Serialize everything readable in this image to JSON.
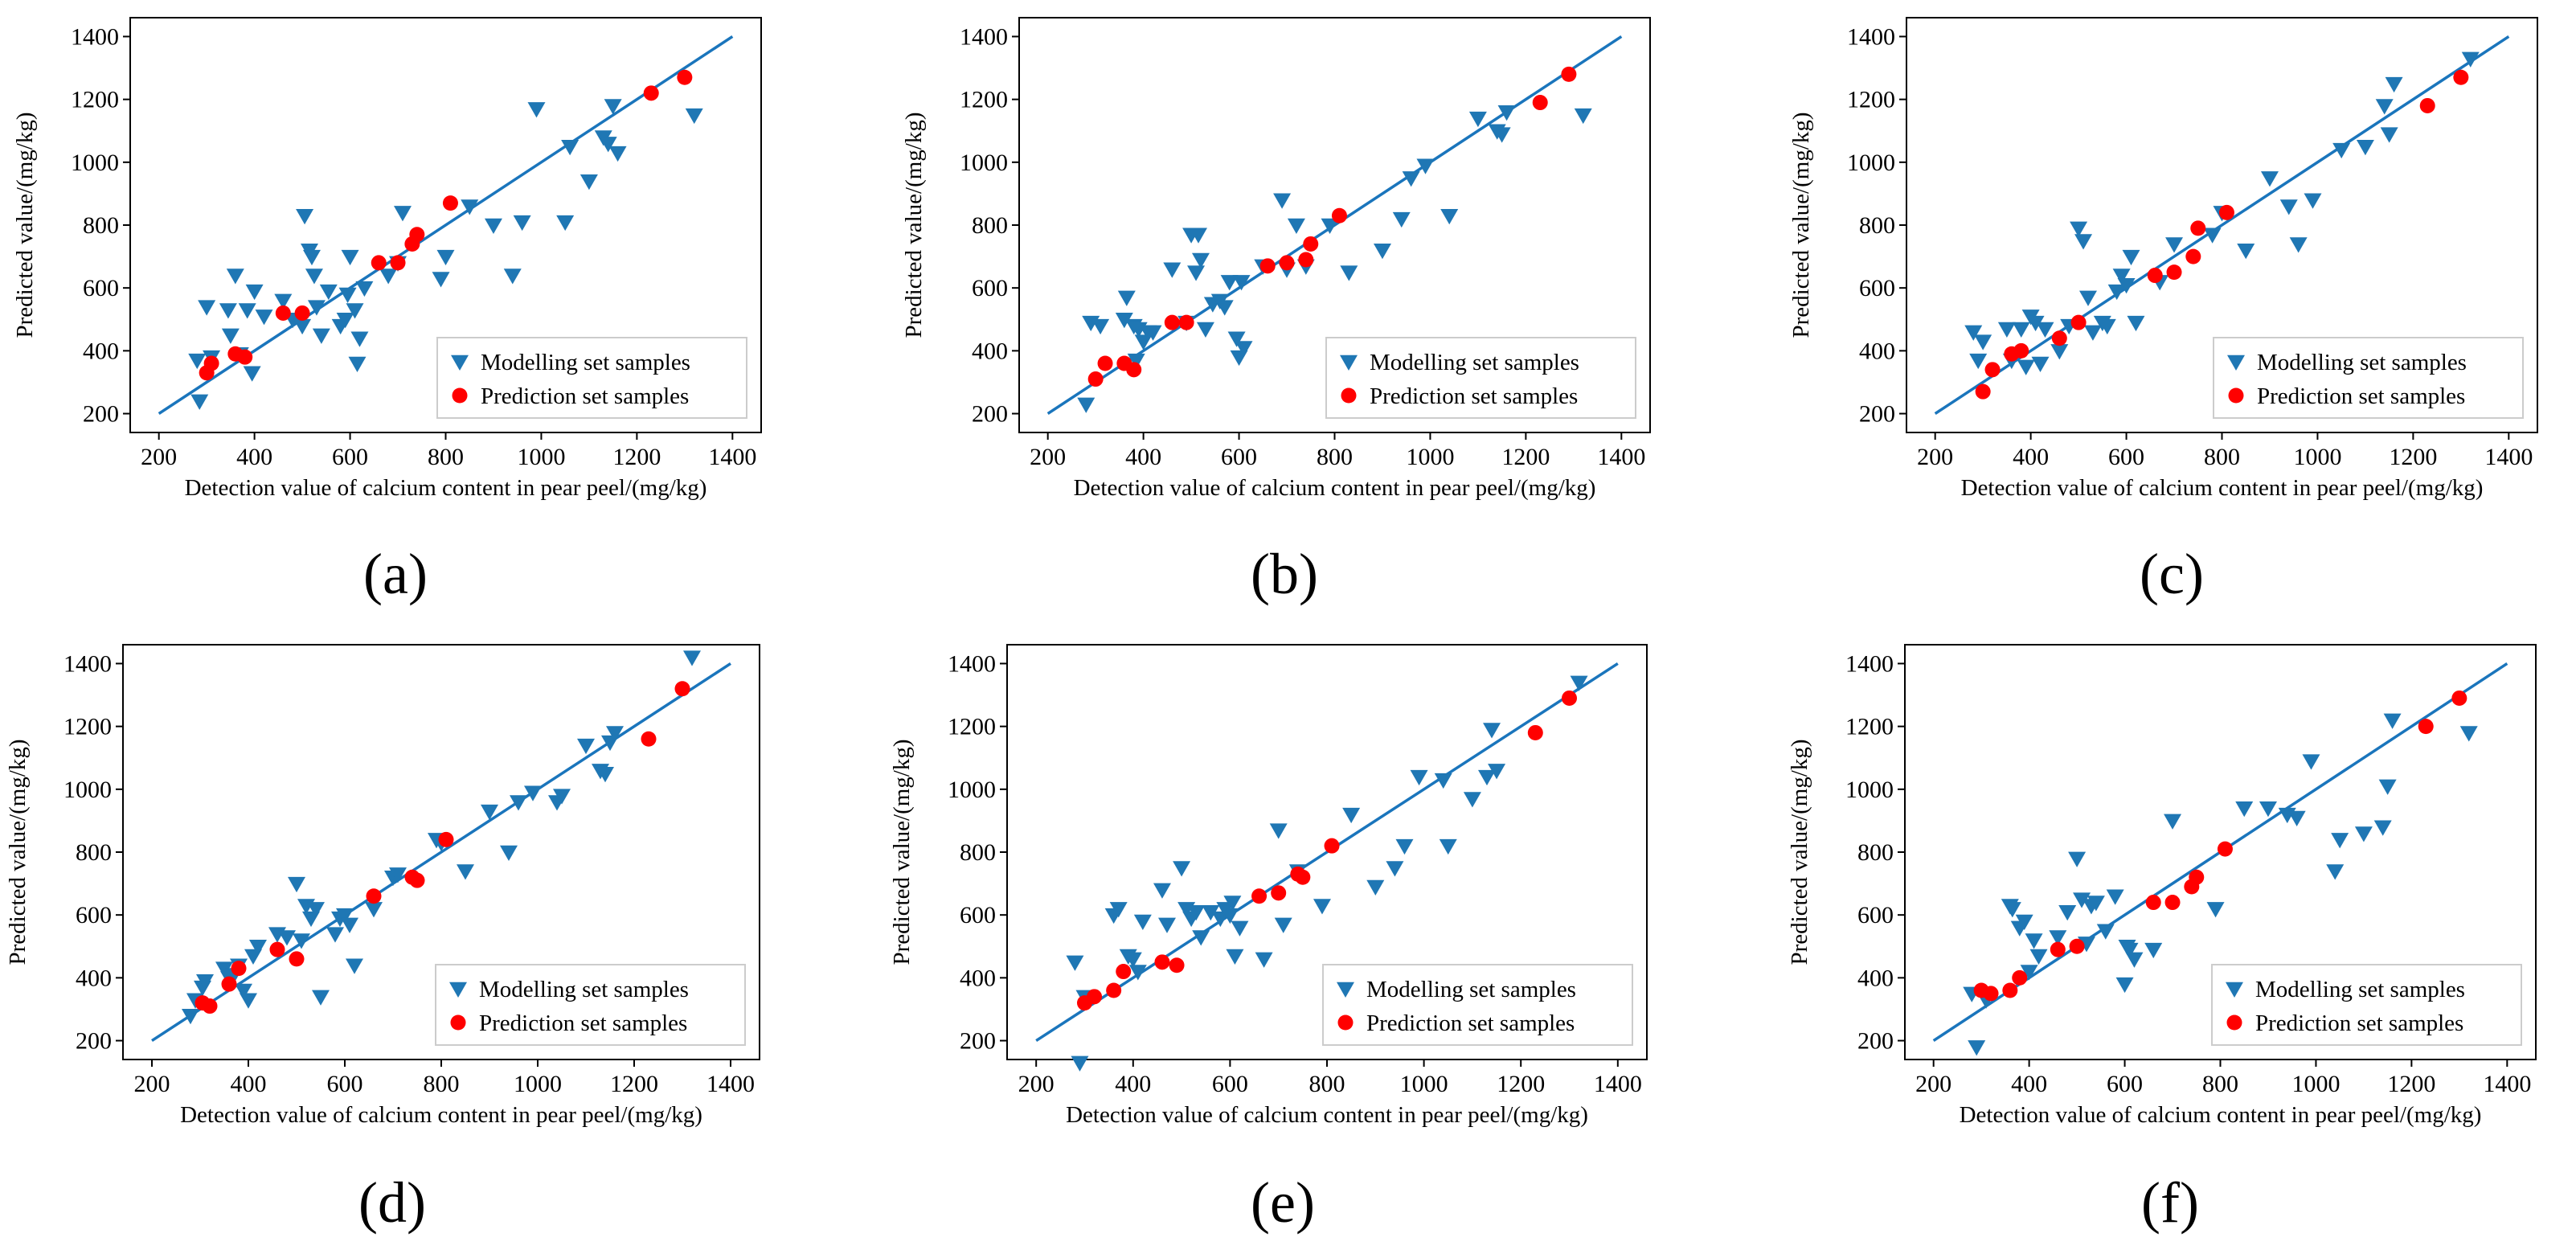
{
  "colors": {
    "modelling": "#1f77b4",
    "prediction": "#ff0000",
    "fit_line": "#1a75bc"
  },
  "chart_data": [
    {
      "panel": "(a)",
      "type": "scatter",
      "xlabel": "Detection value of calcium content in pear peel/(mg/kg)",
      "ylabel": "Predicted value/(mg/kg)",
      "xlim": [
        200,
        1400
      ],
      "ylim": [
        200,
        1400
      ],
      "xticks": [
        200,
        400,
        600,
        800,
        1000,
        1200,
        1400
      ],
      "yticks": [
        200,
        400,
        600,
        800,
        1000,
        1200,
        1400
      ],
      "legend": {
        "position": "lower-right",
        "entries": [
          "Modelling set samples",
          "Prediction set samples"
        ]
      },
      "fit_line": {
        "x": [
          200,
          1400
        ],
        "y": [
          200,
          1400
        ]
      },
      "series": [
        {
          "name": "Modelling set samples",
          "marker": "triangle-down",
          "x": [
            280,
            285,
            300,
            310,
            345,
            350,
            360,
            370,
            385,
            395,
            400,
            420,
            460,
            480,
            500,
            505,
            515,
            520,
            525,
            530,
            540,
            555,
            580,
            590,
            595,
            600,
            610,
            615,
            620,
            630,
            680,
            700,
            710,
            790,
            800,
            850,
            900,
            940,
            960,
            990,
            1050,
            1060,
            1100,
            1130,
            1140,
            1150,
            1160,
            1320
          ],
          "y": [
            370,
            240,
            540,
            380,
            530,
            450,
            640,
            390,
            530,
            330,
            590,
            510,
            560,
            500,
            480,
            830,
            720,
            700,
            640,
            540,
            450,
            590,
            480,
            500,
            580,
            700,
            530,
            360,
            440,
            600,
            640,
            680,
            840,
            630,
            700,
            860,
            800,
            640,
            810,
            1170,
            810,
            1050,
            940,
            1080,
            1060,
            1180,
            1030,
            1150
          ]
        },
        {
          "name": "Prediction set samples",
          "marker": "circle",
          "x": [
            300,
            310,
            360,
            380,
            460,
            500,
            660,
            700,
            730,
            740,
            810,
            1230,
            1300
          ],
          "y": [
            330,
            360,
            390,
            380,
            520,
            520,
            680,
            680,
            740,
            770,
            870,
            1220,
            1270
          ]
        }
      ]
    },
    {
      "panel": "(b)",
      "type": "scatter",
      "xlabel": "Detection value of calcium content in pear peel/(mg/kg)",
      "ylabel": "Predicted value/(mg/kg)",
      "xlim": [
        200,
        1400
      ],
      "ylim": [
        200,
        1400
      ],
      "xticks": [
        200,
        400,
        600,
        800,
        1000,
        1200,
        1400
      ],
      "yticks": [
        200,
        400,
        600,
        800,
        1000,
        1200,
        1400
      ],
      "legend": {
        "position": "lower-right",
        "entries": [
          "Modelling set samples",
          "Prediction set samples"
        ]
      },
      "fit_line": {
        "x": [
          200,
          1400
        ],
        "y": [
          200,
          1400
        ]
      },
      "series": [
        {
          "name": "Modelling set samples",
          "marker": "triangle-down",
          "x": [
            280,
            290,
            310,
            360,
            365,
            380,
            385,
            390,
            400,
            410,
            420,
            460,
            490,
            500,
            510,
            515,
            520,
            530,
            545,
            560,
            580,
            600,
            605,
            610,
            650,
            690,
            700,
            720,
            740,
            790,
            830,
            900,
            940,
            960,
            990,
            1040,
            1100,
            1140,
            1150,
            1160,
            1320,
            570,
            595
          ],
          "y": [
            230,
            490,
            480,
            500,
            570,
            480,
            370,
            470,
            430,
            460,
            460,
            660,
            490,
            770,
            650,
            770,
            690,
            470,
            550,
            560,
            620,
            380,
            620,
            410,
            670,
            880,
            660,
            800,
            670,
            800,
            650,
            720,
            820,
            950,
            990,
            830,
            1140,
            1100,
            1090,
            1160,
            1150,
            540,
            440
          ]
        },
        {
          "name": "Prediction set samples",
          "marker": "circle",
          "x": [
            300,
            320,
            360,
            380,
            460,
            490,
            660,
            700,
            740,
            750,
            810,
            1230,
            1290
          ],
          "y": [
            310,
            360,
            360,
            340,
            490,
            490,
            670,
            680,
            690,
            740,
            830,
            1190,
            1280
          ]
        }
      ]
    },
    {
      "panel": "(c)",
      "type": "scatter",
      "xlabel": "Detection value of calcium content in pear peel/(mg/kg)",
      "ylabel": "Predicted value/(mg/kg)",
      "xlim": [
        200,
        1400
      ],
      "ylim": [
        200,
        1400
      ],
      "xticks": [
        200,
        400,
        600,
        800,
        1000,
        1200,
        1400
      ],
      "yticks": [
        200,
        400,
        600,
        800,
        1000,
        1200,
        1400
      ],
      "legend": {
        "position": "lower-right",
        "entries": [
          "Modelling set samples",
          "Prediction set samples"
        ]
      },
      "fit_line": {
        "x": [
          200,
          1400
        ],
        "y": [
          200,
          1400
        ]
      },
      "series": [
        {
          "name": "Modelling set samples",
          "marker": "triangle-down",
          "x": [
            280,
            290,
            300,
            350,
            360,
            380,
            390,
            400,
            410,
            420,
            430,
            460,
            480,
            500,
            510,
            520,
            530,
            550,
            560,
            580,
            590,
            600,
            610,
            620,
            670,
            700,
            780,
            800,
            850,
            900,
            940,
            960,
            990,
            1050,
            1100,
            1140,
            1150,
            1160,
            1320
          ],
          "y": [
            460,
            370,
            430,
            470,
            370,
            470,
            350,
            510,
            490,
            360,
            470,
            400,
            480,
            790,
            750,
            570,
            460,
            490,
            480,
            590,
            640,
            610,
            700,
            490,
            620,
            740,
            770,
            840,
            720,
            950,
            860,
            740,
            880,
            1040,
            1050,
            1180,
            1090,
            1250,
            1330
          ]
        },
        {
          "name": "Prediction set samples",
          "marker": "circle",
          "x": [
            300,
            320,
            360,
            380,
            460,
            500,
            660,
            700,
            740,
            750,
            810,
            1230,
            1300
          ],
          "y": [
            270,
            340,
            390,
            400,
            440,
            490,
            640,
            650,
            700,
            790,
            840,
            1180,
            1270
          ]
        }
      ]
    },
    {
      "panel": "(d)",
      "type": "scatter",
      "xlabel": "Detection value of calcium content in pear peel/(mg/kg)",
      "ylabel": "Predicted value/(mg/kg)",
      "xlim": [
        200,
        1400
      ],
      "ylim": [
        200,
        1400
      ],
      "xticks": [
        200,
        400,
        600,
        800,
        1000,
        1200,
        1400
      ],
      "yticks": [
        200,
        400,
        600,
        800,
        1000,
        1200,
        1400
      ],
      "legend": {
        "position": "lower-right",
        "entries": [
          "Modelling set samples",
          "Prediction set samples"
        ]
      },
      "fit_line": {
        "x": [
          200,
          1400
        ],
        "y": [
          200,
          1400
        ]
      },
      "series": [
        {
          "name": "Modelling set samples",
          "marker": "triangle-down",
          "x": [
            280,
            290,
            305,
            310,
            350,
            360,
            370,
            380,
            390,
            400,
            410,
            420,
            460,
            480,
            500,
            510,
            520,
            530,
            540,
            550,
            580,
            590,
            600,
            610,
            620,
            660,
            700,
            710,
            790,
            800,
            850,
            900,
            940,
            960,
            990,
            1040,
            1050,
            1100,
            1130,
            1140,
            1150,
            1160,
            1320
          ],
          "y": [
            280,
            330,
            370,
            390,
            430,
            400,
            410,
            440,
            360,
            330,
            470,
            500,
            540,
            530,
            700,
            520,
            630,
            590,
            620,
            340,
            540,
            590,
            600,
            570,
            440,
            620,
            720,
            730,
            840,
            830,
            740,
            930,
            800,
            960,
            990,
            960,
            980,
            1140,
            1060,
            1050,
            1150,
            1180,
            1420
          ]
        },
        {
          "name": "Prediction set samples",
          "marker": "circle",
          "x": [
            305,
            320,
            360,
            380,
            460,
            500,
            660,
            740,
            750,
            810,
            1230,
            1300
          ],
          "y": [
            320,
            310,
            380,
            430,
            490,
            460,
            660,
            720,
            710,
            840,
            1160,
            1320
          ]
        }
      ]
    },
    {
      "panel": "(e)",
      "type": "scatter",
      "xlabel": "Detection value of calcium content in pear peel/(mg/kg)",
      "ylabel": "Predicted value/(mg/kg)",
      "xlim": [
        200,
        1400
      ],
      "ylim": [
        200,
        1400
      ],
      "xticks": [
        200,
        400,
        600,
        800,
        1000,
        1200,
        1400
      ],
      "yticks": [
        200,
        400,
        600,
        800,
        1000,
        1200,
        1400
      ],
      "legend": {
        "position": "lower-right",
        "entries": [
          "Modelling set samples",
          "Prediction set samples"
        ]
      },
      "fit_line": {
        "x": [
          200,
          1400
        ],
        "y": [
          200,
          1400
        ]
      },
      "series": [
        {
          "name": "Modelling set samples",
          "marker": "triangle-down",
          "x": [
            280,
            290,
            300,
            360,
            370,
            390,
            400,
            410,
            420,
            460,
            470,
            500,
            510,
            520,
            530,
            540,
            560,
            580,
            590,
            600,
            605,
            610,
            620,
            670,
            700,
            710,
            740,
            790,
            850,
            900,
            940,
            960,
            990,
            1040,
            1050,
            1100,
            1130,
            1140,
            1150,
            1320
          ],
          "y": [
            450,
            130,
            340,
            600,
            620,
            470,
            460,
            420,
            580,
            680,
            570,
            750,
            620,
            590,
            610,
            530,
            610,
            590,
            620,
            600,
            640,
            470,
            560,
            460,
            870,
            570,
            740,
            630,
            920,
            690,
            750,
            820,
            1040,
            1030,
            820,
            970,
            1040,
            1190,
            1060,
            1340
          ]
        },
        {
          "name": "Prediction set samples",
          "marker": "circle",
          "x": [
            300,
            320,
            360,
            380,
            460,
            490,
            660,
            700,
            740,
            750,
            810,
            1230,
            1300
          ],
          "y": [
            320,
            340,
            360,
            420,
            450,
            440,
            660,
            670,
            730,
            720,
            820,
            1180,
            1290
          ]
        }
      ]
    },
    {
      "panel": "(f)",
      "type": "scatter",
      "xlabel": "Detection value of calcium content in pear peel/(mg/kg)",
      "ylabel": "Predicted value/(mg/kg)",
      "xlim": [
        200,
        1400
      ],
      "ylim": [
        200,
        1400
      ],
      "xticks": [
        200,
        400,
        600,
        800,
        1000,
        1200,
        1400
      ],
      "yticks": [
        200,
        400,
        600,
        800,
        1000,
        1200,
        1400
      ],
      "legend": {
        "position": "lower-right",
        "entries": [
          "Modelling set samples",
          "Prediction set samples"
        ]
      },
      "fit_line": {
        "x": [
          200,
          1400
        ],
        "y": [
          200,
          1400
        ]
      },
      "series": [
        {
          "name": "Modelling set samples",
          "marker": "triangle-down",
          "x": [
            280,
            290,
            310,
            360,
            365,
            380,
            390,
            400,
            410,
            420,
            460,
            480,
            500,
            510,
            520,
            530,
            540,
            560,
            580,
            600,
            605,
            610,
            620,
            660,
            700,
            790,
            850,
            900,
            940,
            960,
            990,
            1040,
            1050,
            1100,
            1140,
            1150,
            1160,
            1320
          ],
          "y": [
            350,
            180,
            330,
            630,
            620,
            560,
            580,
            420,
            520,
            470,
            530,
            610,
            780,
            650,
            510,
            630,
            640,
            550,
            660,
            380,
            500,
            490,
            460,
            490,
            900,
            620,
            940,
            940,
            920,
            910,
            1090,
            740,
            840,
            860,
            880,
            1010,
            1220,
            1180
          ]
        },
        {
          "name": "Prediction set samples",
          "marker": "circle",
          "x": [
            300,
            320,
            360,
            380,
            460,
            500,
            660,
            700,
            740,
            750,
            810,
            1230,
            1300
          ],
          "y": [
            360,
            350,
            360,
            400,
            490,
            500,
            640,
            640,
            690,
            720,
            810,
            1200,
            1290
          ]
        }
      ]
    }
  ]
}
